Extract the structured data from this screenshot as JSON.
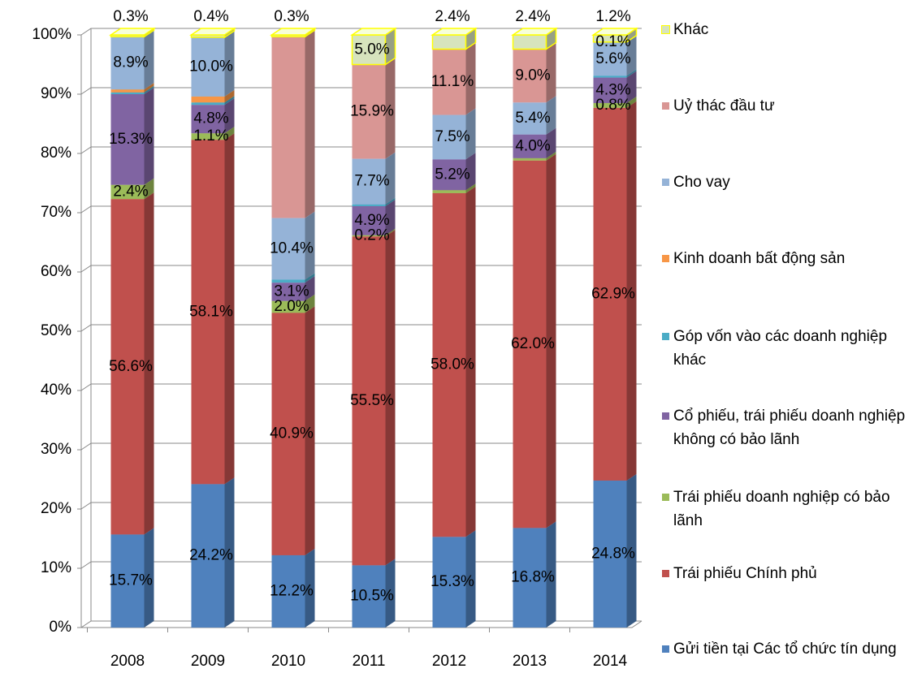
{
  "chart_data": {
    "type": "stacked-bar-3d",
    "categories": [
      "2008",
      "2009",
      "2010",
      "2011",
      "2012",
      "2013",
      "2014"
    ],
    "ylim": [
      0,
      100
    ],
    "yticks": [
      {
        "value": 0,
        "label": "0%"
      },
      {
        "value": 10,
        "label": "10%"
      },
      {
        "value": 20,
        "label": "20%"
      },
      {
        "value": 30,
        "label": "30%"
      },
      {
        "value": 40,
        "label": "40%"
      },
      {
        "value": 50,
        "label": "50%"
      },
      {
        "value": 60,
        "label": "60%"
      },
      {
        "value": 70,
        "label": "70%"
      },
      {
        "value": 80,
        "label": "80%"
      },
      {
        "value": 90,
        "label": "90%"
      },
      {
        "value": 100,
        "label": "100%"
      }
    ],
    "grid": true,
    "legend": "right",
    "series": [
      {
        "name": "Gửi tiền tại Các tổ chức tín dụng",
        "color": "#4f81bd",
        "values": [
          15.7,
          24.2,
          12.2,
          10.5,
          15.3,
          16.8,
          24.8
        ],
        "value_labels": [
          "15.7%",
          "24.2%",
          "12.2%",
          "10.5%",
          "15.3%",
          "16.8%",
          "24.8%"
        ]
      },
      {
        "name": "Trái phiếu Chính phủ",
        "color": "#c0504d",
        "values": [
          56.6,
          58.1,
          40.9,
          55.5,
          58.0,
          62.0,
          62.9
        ],
        "value_labels": [
          "56.6%",
          "58.1%",
          "40.9%",
          "55.5%",
          "58.0%",
          "62.0%",
          "62.9%"
        ]
      },
      {
        "name": "Trái phiếu doanh nghiệp có bảo lãnh",
        "color": "#9bbb59",
        "values": [
          2.4,
          1.1,
          2.0,
          0.2,
          0.5,
          0.4,
          0.8
        ],
        "value_labels": [
          "2.4%",
          "1.1%",
          "2.0%",
          "0.2%",
          null,
          null,
          "0.8%"
        ]
      },
      {
        "name": "Cổ phiếu, trái phiếu doanh nghiệp không có bảo lãnh",
        "color": "#8064a2",
        "values": [
          15.3,
          4.8,
          3.1,
          4.9,
          5.2,
          4.0,
          4.3
        ],
        "value_labels": [
          "15.3%",
          "4.8%",
          "3.1%",
          "4.9%",
          "5.2%",
          "4.0%",
          "4.3%"
        ]
      },
      {
        "name": "Góp vốn vào các doanh nghiệp khác",
        "color": "#4bacc6",
        "values": [
          0.3,
          0.4,
          0.5,
          0.3,
          null,
          null,
          0.3
        ],
        "value_labels": [
          null,
          null,
          null,
          null,
          null,
          null,
          null
        ]
      },
      {
        "name": "Kinh doanh bất động sản",
        "color": "#f79646",
        "values": [
          0.5,
          1.0,
          null,
          null,
          null,
          null,
          null
        ],
        "value_labels": [
          null,
          null,
          null,
          null,
          null,
          null,
          null
        ]
      },
      {
        "name": "Cho vay",
        "color": "#95b3d7",
        "values": [
          8.9,
          10.0,
          10.4,
          7.7,
          7.5,
          5.4,
          5.6
        ],
        "value_labels": [
          "8.9%",
          "10.0%",
          "10.4%",
          "7.7%",
          "7.5%",
          "5.4%",
          "5.6%"
        ]
      },
      {
        "name": "Uỷ thác đầu tư",
        "color": "#d99694",
        "values": [
          null,
          null,
          30.6,
          15.9,
          11.1,
          9.0,
          0.1
        ],
        "value_labels": [
          null,
          null,
          null,
          "15.9%",
          "11.1%",
          "9.0%",
          "0.1%"
        ]
      },
      {
        "name": "Khác",
        "color": "#d7e4bd",
        "values": [
          0.3,
          0.4,
          0.3,
          5.0,
          2.4,
          2.4,
          1.2
        ],
        "value_labels": [
          "0.3%",
          "0.4%",
          "0.3%",
          "5.0%",
          "2.4%",
          "2.4%",
          "1.2%"
        ]
      }
    ]
  }
}
